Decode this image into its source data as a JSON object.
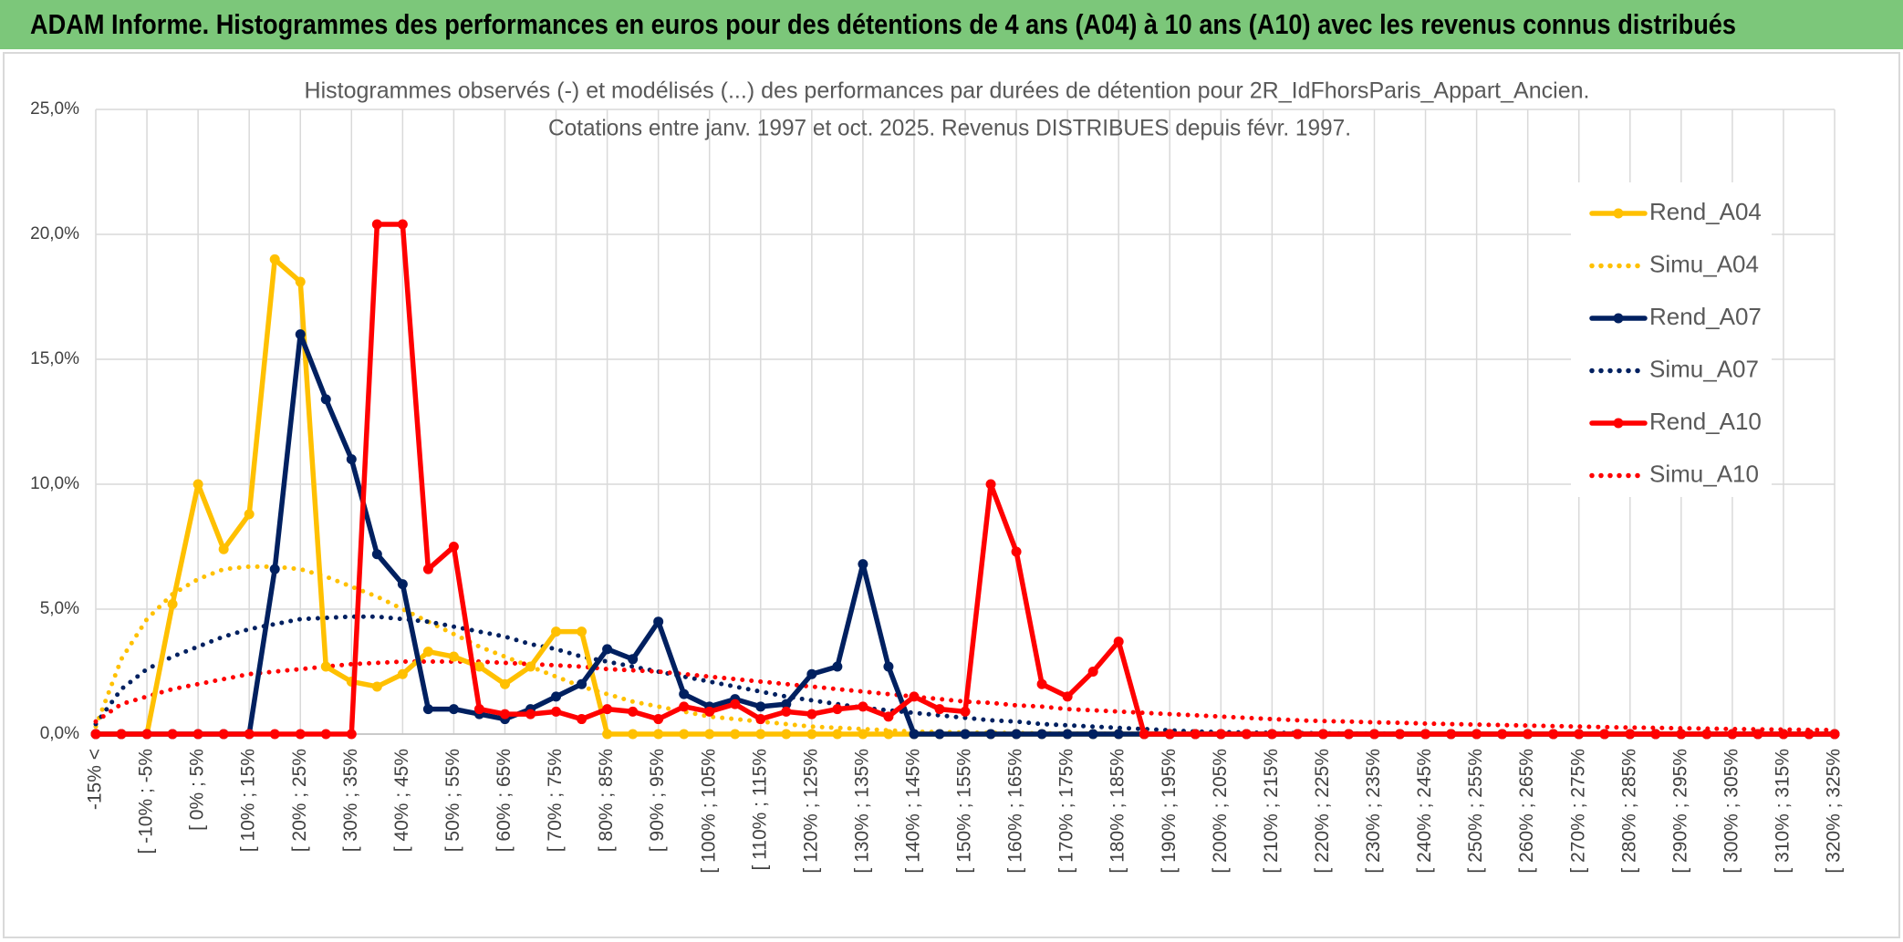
{
  "header": {
    "title": "ADAM Informe. Histogrammes des performances en euros pour des détentions de 4 ans (A04) à 10 ans (A10) avec les revenus connus distribués"
  },
  "chart_data": {
    "type": "line",
    "title": "Histogrammes observés (-) et modélisés (...) des performances par durées de détention pour 2R_IdFhorsParis_Appart_Ancien.",
    "subtitle": "Cotations entre janv. 1997 et oct. 2025. Revenus DISTRIBUES depuis févr. 1997.",
    "categories": [
      "-15% <",
      null,
      "[ -10% ; -5%",
      null,
      "[ 0% ; 5%",
      null,
      "[ 10% ; 15%",
      null,
      "[ 20% ; 25%",
      null,
      "[ 30% ; 35%",
      null,
      "[ 40% ; 45%",
      null,
      "[ 50% ; 55%",
      null,
      "[ 60% ; 65%",
      null,
      "[ 70% ; 75%",
      null,
      "[ 80% ; 85%",
      null,
      "[ 90% ; 95%",
      null,
      "[ 100% ; 105%",
      null,
      "[ 110% ; 115%",
      null,
      "[ 120% ; 125%",
      null,
      "[ 130% ; 135%",
      null,
      "[ 140% ; 145%",
      null,
      "[ 150% ; 155%",
      null,
      "[ 160% ; 165%",
      null,
      "[ 170% ; 175%",
      null,
      "[ 180% ; 185%",
      null,
      "[ 190% ; 195%",
      null,
      "[ 200% ; 205%",
      null,
      "[ 210% ; 215%",
      null,
      "[ 220% ; 225%",
      null,
      "[ 230% ; 235%",
      null,
      "[ 240% ; 245%",
      null,
      "[ 250% ; 255%",
      null,
      "[ 260% ; 265%",
      null,
      "[ 270% ; 275%",
      null,
      "[ 280% ; 285%",
      null,
      "[ 290% ; 295%",
      null,
      "[ 300% ; 305%",
      null,
      "[ 310% ; 315%",
      null,
      "[ 320% ; 325%"
    ],
    "series": [
      {
        "name": "Rend_A04",
        "color": "#FFC000",
        "style": "solid",
        "values": [
          0,
          0,
          0,
          5.2,
          10.0,
          7.4,
          8.8,
          19.0,
          18.1,
          2.7,
          2.1,
          1.9,
          2.4,
          3.3,
          3.1,
          2.7,
          2.0,
          2.7,
          4.1,
          4.1,
          0,
          0,
          0,
          0,
          0,
          0,
          0,
          0,
          0,
          0,
          0,
          0,
          0,
          0,
          0,
          0,
          0,
          0,
          0,
          0,
          0,
          0,
          0,
          0,
          0,
          0,
          0,
          0,
          0,
          0,
          0,
          0,
          0,
          0,
          0,
          0,
          0,
          0,
          0,
          0,
          0,
          0,
          0,
          0,
          0,
          0,
          0,
          0,
          0
        ]
      },
      {
        "name": "Simu_A04",
        "color": "#FFC000",
        "style": "dotted",
        "values": [
          0.3,
          3.0,
          4.6,
          5.6,
          6.2,
          6.6,
          6.7,
          6.7,
          6.6,
          6.3,
          5.9,
          5.5,
          5.0,
          4.5,
          4.0,
          3.5,
          3.1,
          2.7,
          2.3,
          1.9,
          1.6,
          1.3,
          1.1,
          0.9,
          0.7,
          0.6,
          0.5,
          0.4,
          0.3,
          0.25,
          0.2,
          0.15,
          0.1,
          0.08,
          0.06,
          0.05,
          0.04,
          0.03,
          0.02,
          0.02,
          0.01,
          0.01,
          0,
          0,
          0,
          0,
          0,
          0,
          0,
          0,
          0,
          0,
          0,
          0,
          0,
          0,
          0,
          0,
          0,
          0,
          0,
          0,
          0,
          0,
          0,
          0,
          0,
          0,
          0
        ]
      },
      {
        "name": "Rend_A07",
        "color": "#002060",
        "style": "solid",
        "values": [
          0,
          0,
          0,
          0,
          0,
          0,
          0,
          6.6,
          16.0,
          13.4,
          11.0,
          7.2,
          6.0,
          1.0,
          1.0,
          0.8,
          0.6,
          1.0,
          1.5,
          2.0,
          3.4,
          3.0,
          4.5,
          1.6,
          1.1,
          1.4,
          1.1,
          1.2,
          2.4,
          2.7,
          6.8,
          2.7,
          0,
          0,
          0,
          0,
          0,
          0,
          0,
          0,
          0,
          0,
          0,
          0,
          0,
          0,
          0,
          0,
          0,
          0,
          0,
          0,
          0,
          0,
          0,
          0,
          0,
          0,
          0,
          0,
          0,
          0,
          0,
          0,
          0,
          0,
          0,
          0,
          0
        ]
      },
      {
        "name": "Simu_A07",
        "color": "#002060",
        "style": "dotted",
        "values": [
          0.4,
          1.8,
          2.6,
          3.1,
          3.5,
          3.9,
          4.2,
          4.4,
          4.6,
          4.65,
          4.7,
          4.7,
          4.6,
          4.5,
          4.3,
          4.1,
          3.9,
          3.6,
          3.4,
          3.1,
          2.9,
          2.7,
          2.5,
          2.3,
          2.1,
          1.9,
          1.7,
          1.5,
          1.35,
          1.2,
          1.05,
          0.95,
          0.85,
          0.75,
          0.65,
          0.55,
          0.5,
          0.4,
          0.35,
          0.3,
          0.25,
          0.2,
          0.15,
          0.1,
          0.08,
          0.06,
          0.05,
          0.04,
          0.03,
          0.02,
          0.02,
          0.01,
          0.01,
          0,
          0,
          0,
          0,
          0,
          0,
          0,
          0,
          0,
          0,
          0,
          0,
          0,
          0,
          0,
          0
        ]
      },
      {
        "name": "Rend_A10",
        "color": "#FF0000",
        "style": "solid",
        "values": [
          0,
          0,
          0,
          0,
          0,
          0,
          0,
          0,
          0,
          0,
          0,
          20.4,
          20.4,
          6.6,
          7.5,
          1.0,
          0.8,
          0.8,
          0.9,
          0.6,
          1.0,
          0.9,
          0.6,
          1.1,
          0.9,
          1.2,
          0.6,
          0.9,
          0.8,
          1.0,
          1.1,
          0.7,
          1.5,
          1.0,
          0.9,
          10.0,
          7.3,
          2.0,
          1.5,
          2.5,
          3.7,
          0,
          0,
          0,
          0,
          0,
          0,
          0,
          0,
          0,
          0,
          0,
          0,
          0,
          0,
          0,
          0,
          0,
          0,
          0,
          0,
          0,
          0,
          0,
          0,
          0,
          0,
          0,
          0
        ]
      },
      {
        "name": "Simu_A10",
        "color": "#FF0000",
        "style": "dotted",
        "values": [
          0.5,
          1.2,
          1.5,
          1.8,
          2.0,
          2.2,
          2.4,
          2.5,
          2.6,
          2.7,
          2.8,
          2.85,
          2.9,
          2.9,
          2.9,
          2.9,
          2.85,
          2.8,
          2.75,
          2.7,
          2.6,
          2.55,
          2.5,
          2.4,
          2.3,
          2.2,
          2.1,
          2.0,
          1.9,
          1.8,
          1.7,
          1.6,
          1.5,
          1.4,
          1.3,
          1.25,
          1.15,
          1.1,
          1.0,
          0.95,
          0.9,
          0.85,
          0.8,
          0.75,
          0.7,
          0.65,
          0.6,
          0.55,
          0.52,
          0.5,
          0.47,
          0.45,
          0.42,
          0.4,
          0.38,
          0.36,
          0.34,
          0.32,
          0.3,
          0.28,
          0.26,
          0.25,
          0.23,
          0.22,
          0.2,
          0.19,
          0.18,
          0.17,
          0.16
        ]
      }
    ],
    "ylim": [
      0,
      25
    ],
    "yticks": [
      {
        "value": 0,
        "label": "0,0%"
      },
      {
        "value": 5,
        "label": "5,0%"
      },
      {
        "value": 10,
        "label": "10,0%"
      },
      {
        "value": 15,
        "label": "15,0%"
      },
      {
        "value": 20,
        "label": "20,0%"
      },
      {
        "value": 25,
        "label": "25,0%"
      }
    ],
    "grid": true,
    "legend": "right"
  }
}
